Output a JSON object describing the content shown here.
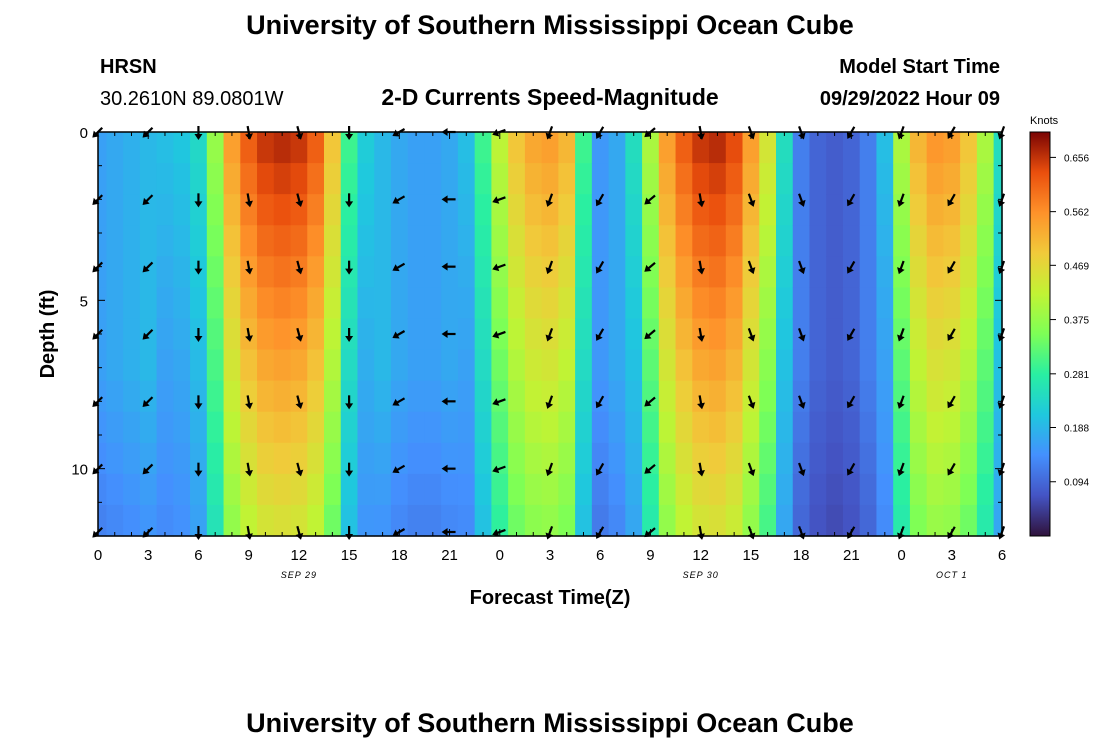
{
  "header": {
    "title": "University of Southern Mississippi Ocean Cube",
    "station": "HRSN",
    "coords": "30.2610N  89.0801W",
    "subtitle": "2-D Currents Speed-Magnitude",
    "model_label": "Model Start Time",
    "model_time": "09/29/2022 Hour 09",
    "footer_title": "University of Southern Mississippi Ocean Cube"
  },
  "chart_data": {
    "type": "heatmap",
    "title": "2-D Currents Speed-Magnitude",
    "xlabel": "Forecast Time(Z)",
    "ylabel": "Depth (ft)",
    "xlim": [
      0,
      54
    ],
    "ylim": [
      12,
      0
    ],
    "x_ticks": [
      0,
      3,
      6,
      9,
      12,
      15,
      18,
      21,
      24,
      27,
      30,
      33,
      36,
      39,
      42,
      45,
      48,
      51,
      54
    ],
    "x_tick_labels": [
      "0",
      "3",
      "6",
      "9",
      "12",
      "15",
      "18",
      "21",
      "0",
      "3",
      "6",
      "9",
      "12",
      "15",
      "18",
      "21",
      "0",
      "3",
      "6"
    ],
    "y_ticks": [
      0,
      5,
      10
    ],
    "y_tick_labels": [
      "0",
      "5",
      "10"
    ],
    "date_labels": [
      {
        "x": 12,
        "text": "SEP 29"
      },
      {
        "x": 36,
        "text": "SEP 30"
      },
      {
        "x": 51,
        "text": "OCT 1"
      }
    ],
    "time_hours": [
      0,
      1,
      2,
      3,
      4,
      5,
      6,
      7,
      8,
      9,
      10,
      11,
      12,
      13,
      14,
      15,
      16,
      17,
      18,
      19,
      20,
      21,
      22,
      23,
      24,
      25,
      26,
      27,
      28,
      29,
      30,
      31,
      32,
      33,
      34,
      35,
      36,
      37,
      38,
      39,
      40,
      41,
      42,
      43,
      44,
      45,
      46,
      47,
      48,
      49,
      50,
      51,
      52,
      53,
      54
    ],
    "speed_profile_knots": [
      0.16,
      0.17,
      0.18,
      0.19,
      0.2,
      0.21,
      0.24,
      0.38,
      0.55,
      0.62,
      0.66,
      0.67,
      0.66,
      0.62,
      0.5,
      0.3,
      0.22,
      0.19,
      0.17,
      0.16,
      0.16,
      0.17,
      0.2,
      0.3,
      0.42,
      0.5,
      0.54,
      0.55,
      0.52,
      0.3,
      0.15,
      0.17,
      0.25,
      0.4,
      0.55,
      0.62,
      0.66,
      0.67,
      0.64,
      0.55,
      0.45,
      0.25,
      0.12,
      0.09,
      0.08,
      0.09,
      0.12,
      0.2,
      0.4,
      0.52,
      0.56,
      0.55,
      0.5,
      0.4,
      0.25
    ],
    "colorbar": {
      "label": "Knots",
      "min": 0,
      "max": 0.7,
      "ticks": [
        0.094,
        0.188,
        0.281,
        0.375,
        0.469,
        0.562,
        0.656
      ],
      "tick_labels": [
        "0.094",
        "0.188",
        "0.281",
        "0.375",
        "0.469",
        "0.562",
        "0.656"
      ]
    },
    "arrow_depths_ft": [
      0,
      2,
      4,
      6,
      8,
      10,
      12
    ],
    "arrow_times_hours": [
      0,
      3,
      6,
      9,
      12,
      15,
      18,
      21,
      24,
      27,
      30,
      33,
      36,
      39,
      42,
      45,
      48,
      51,
      54
    ],
    "arrow_directions_deg": [
      225,
      225,
      270,
      280,
      285,
      270,
      210,
      180,
      200,
      250,
      240,
      220,
      280,
      290,
      290,
      240,
      250,
      240,
      250
    ]
  }
}
